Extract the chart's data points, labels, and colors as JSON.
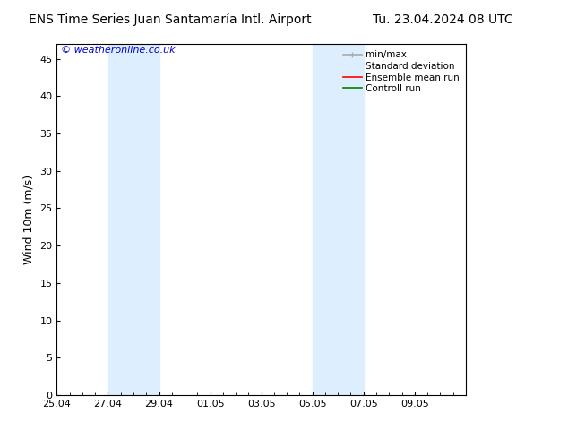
{
  "title_left": "ENS Time Series Juan Santamaría Intl. Airport",
  "title_right": "Tu. 23.04.2024 08 UTC",
  "ylabel": "Wind 10m (m/s)",
  "ylim": [
    0,
    47
  ],
  "yticks": [
    0,
    5,
    10,
    15,
    20,
    25,
    30,
    35,
    40,
    45
  ],
  "xtick_labels": [
    "25.04",
    "27.04",
    "29.04",
    "01.05",
    "03.05",
    "05.05",
    "07.05",
    "09.05"
  ],
  "xtick_positions": [
    0,
    2,
    4,
    6,
    8,
    10,
    12,
    14
  ],
  "x_min": 0,
  "x_max": 16,
  "watermark": "© weatheronline.co.uk",
  "watermark_color": "#0000cc",
  "background_color": "#ffffff",
  "plot_bg_color": "#ffffff",
  "shaded_regions": [
    {
      "x_start": 2,
      "x_end": 4,
      "color": "#ddeeff"
    },
    {
      "x_start": 10,
      "x_end": 12,
      "color": "#ddeeff"
    }
  ],
  "legend_minmax_color": "#aaaaaa",
  "legend_std_color": "#ddeeff",
  "legend_ens_color": "#ff0000",
  "legend_ctrl_color": "#008000",
  "title_fontsize": 10,
  "tick_fontsize": 8,
  "ylabel_fontsize": 9,
  "legend_fontsize": 7.5,
  "watermark_fontsize": 8
}
